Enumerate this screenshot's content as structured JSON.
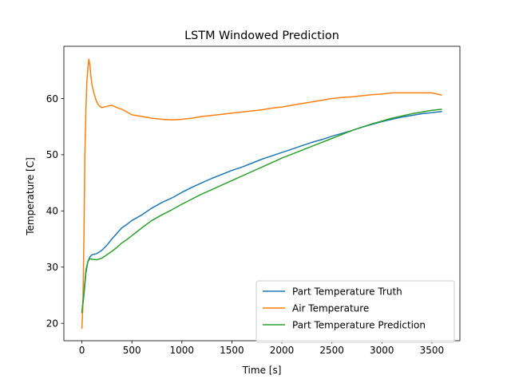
{
  "chart_data": {
    "type": "line",
    "title": "LSTM Windowed Prediction",
    "xlabel": "Time [s]",
    "ylabel": "Temperature [C]",
    "xlim": [
      -180,
      3780
    ],
    "ylim": [
      16.9,
      69.3
    ],
    "xticks": [
      0,
      500,
      1000,
      1500,
      2000,
      2500,
      3000,
      3500
    ],
    "yticks": [
      20,
      30,
      40,
      50,
      60
    ],
    "xtick_labels": [
      "0",
      "500",
      "1000",
      "1500",
      "2000",
      "2500",
      "3000",
      "3500"
    ],
    "ytick_labels": [
      "20",
      "30",
      "40",
      "50",
      "60"
    ],
    "grid": false,
    "legend_position": "lower-right",
    "series": [
      {
        "name": "Part Temperature Truth",
        "color": "#1f77b4",
        "points": [
          [
            0,
            21.8
          ],
          [
            20,
            25
          ],
          [
            40,
            29
          ],
          [
            60,
            31
          ],
          [
            80,
            31.8
          ],
          [
            100,
            32.2
          ],
          [
            150,
            32.4
          ],
          [
            200,
            33
          ],
          [
            250,
            33.9
          ],
          [
            300,
            35
          ],
          [
            350,
            36
          ],
          [
            400,
            37
          ],
          [
            450,
            37.6
          ],
          [
            500,
            38.3
          ],
          [
            600,
            39.3
          ],
          [
            700,
            40.5
          ],
          [
            800,
            41.5
          ],
          [
            900,
            42.3
          ],
          [
            1000,
            43.3
          ],
          [
            1100,
            44.2
          ],
          [
            1200,
            45
          ],
          [
            1300,
            45.8
          ],
          [
            1400,
            46.5
          ],
          [
            1500,
            47.2
          ],
          [
            1600,
            47.8
          ],
          [
            1700,
            48.5
          ],
          [
            1800,
            49.2
          ],
          [
            1900,
            49.8
          ],
          [
            2000,
            50.4
          ],
          [
            2100,
            51
          ],
          [
            2200,
            51.6
          ],
          [
            2300,
            52.2
          ],
          [
            2400,
            52.7
          ],
          [
            2500,
            53.3
          ],
          [
            2600,
            53.8
          ],
          [
            2700,
            54.3
          ],
          [
            2800,
            54.9
          ],
          [
            2900,
            55.4
          ],
          [
            3000,
            55.9
          ],
          [
            3100,
            56.3
          ],
          [
            3200,
            56.7
          ],
          [
            3300,
            57
          ],
          [
            3400,
            57.3
          ],
          [
            3500,
            57.5
          ],
          [
            3600,
            57.7
          ]
        ]
      },
      {
        "name": "Air Temperature",
        "color": "#ff7f0e",
        "points": [
          [
            0,
            19
          ],
          [
            10,
            23
          ],
          [
            20,
            35
          ],
          [
            30,
            50
          ],
          [
            40,
            58
          ],
          [
            50,
            63
          ],
          [
            60,
            65.5
          ],
          [
            70,
            67
          ],
          [
            80,
            66
          ],
          [
            90,
            64
          ],
          [
            100,
            62.5
          ],
          [
            120,
            61
          ],
          [
            140,
            59.8
          ],
          [
            160,
            59
          ],
          [
            180,
            58.6
          ],
          [
            200,
            58.4
          ],
          [
            250,
            58.6
          ],
          [
            300,
            58.8
          ],
          [
            350,
            58.4
          ],
          [
            400,
            58.1
          ],
          [
            450,
            57.6
          ],
          [
            500,
            57.1
          ],
          [
            600,
            56.8
          ],
          [
            700,
            56.5
          ],
          [
            800,
            56.3
          ],
          [
            900,
            56.2
          ],
          [
            1000,
            56.3
          ],
          [
            1100,
            56.5
          ],
          [
            1200,
            56.8
          ],
          [
            1300,
            57
          ],
          [
            1400,
            57.2
          ],
          [
            1500,
            57.4
          ],
          [
            1600,
            57.6
          ],
          [
            1700,
            57.8
          ],
          [
            1800,
            58
          ],
          [
            1900,
            58.3
          ],
          [
            2000,
            58.5
          ],
          [
            2100,
            58.8
          ],
          [
            2200,
            59.1
          ],
          [
            2300,
            59.4
          ],
          [
            2400,
            59.7
          ],
          [
            2500,
            60
          ],
          [
            2600,
            60.2
          ],
          [
            2700,
            60.3
          ],
          [
            2800,
            60.5
          ],
          [
            2900,
            60.7
          ],
          [
            3000,
            60.8
          ],
          [
            3100,
            61
          ],
          [
            3200,
            61
          ],
          [
            3300,
            61
          ],
          [
            3400,
            61
          ],
          [
            3500,
            61
          ],
          [
            3600,
            60.6
          ]
        ]
      },
      {
        "name": "Part Temperature Prediction",
        "color": "#2ca02c",
        "points": [
          [
            0,
            21.8
          ],
          [
            20,
            25.5
          ],
          [
            40,
            29.5
          ],
          [
            60,
            31
          ],
          [
            80,
            31.5
          ],
          [
            100,
            31.4
          ],
          [
            150,
            31.3
          ],
          [
            200,
            31.6
          ],
          [
            250,
            32.2
          ],
          [
            300,
            32.8
          ],
          [
            350,
            33.5
          ],
          [
            400,
            34.3
          ],
          [
            450,
            34.9
          ],
          [
            500,
            35.6
          ],
          [
            600,
            37
          ],
          [
            700,
            38.3
          ],
          [
            800,
            39.3
          ],
          [
            900,
            40.2
          ],
          [
            1000,
            41.2
          ],
          [
            1100,
            42.1
          ],
          [
            1200,
            43
          ],
          [
            1300,
            43.8
          ],
          [
            1400,
            44.6
          ],
          [
            1500,
            45.4
          ],
          [
            1600,
            46.2
          ],
          [
            1700,
            47
          ],
          [
            1800,
            47.8
          ],
          [
            1900,
            48.6
          ],
          [
            2000,
            49.4
          ],
          [
            2100,
            50.1
          ],
          [
            2200,
            50.8
          ],
          [
            2300,
            51.5
          ],
          [
            2400,
            52.2
          ],
          [
            2500,
            52.9
          ],
          [
            2600,
            53.6
          ],
          [
            2700,
            54.3
          ],
          [
            2800,
            54.9
          ],
          [
            2900,
            55.5
          ],
          [
            3000,
            56
          ],
          [
            3100,
            56.5
          ],
          [
            3200,
            56.9
          ],
          [
            3300,
            57.3
          ],
          [
            3400,
            57.6
          ],
          [
            3500,
            57.9
          ],
          [
            3600,
            58.1
          ]
        ]
      }
    ]
  }
}
